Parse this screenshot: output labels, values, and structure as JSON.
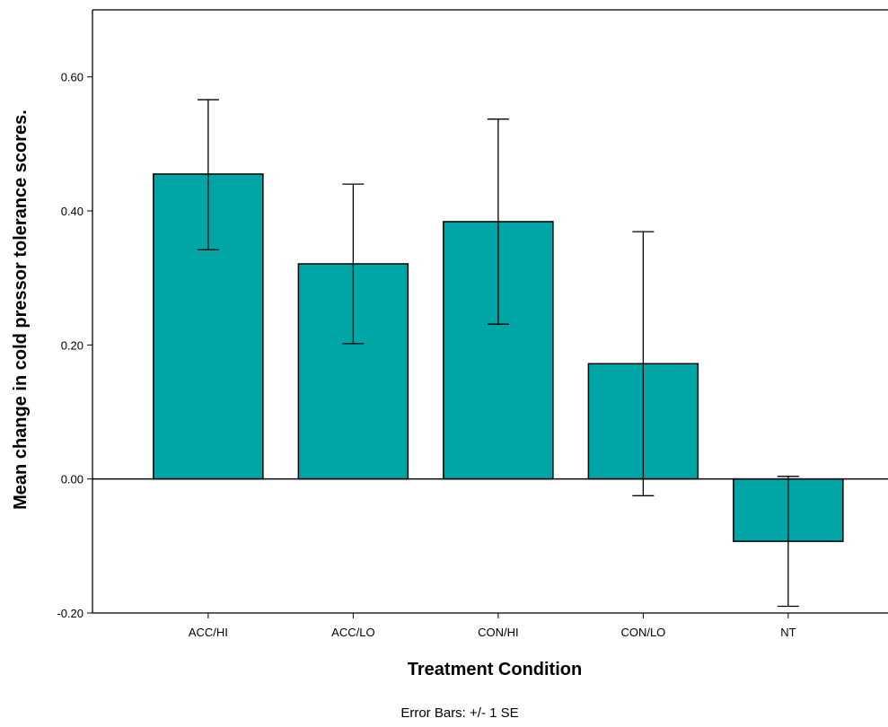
{
  "chart_data": {
    "type": "bar",
    "categories": [
      "ACC/HI",
      "ACC/LO",
      "CON/HI",
      "CON/LO",
      "NT"
    ],
    "series": [
      {
        "values": [
          0.455,
          0.321,
          0.384,
          0.172,
          -0.093
        ],
        "error_low": [
          0.342,
          0.202,
          0.231,
          -0.025,
          -0.19
        ],
        "error_high": [
          0.566,
          0.44,
          0.537,
          0.369,
          0.004
        ]
      }
    ],
    "xlabel": "Treatment Condition",
    "ylabel": "Mean change in cold pressor tolerance scores.",
    "ylim": [
      -0.2,
      0.7
    ],
    "yticks": [
      -0.2,
      0.0,
      0.2,
      0.4,
      0.6
    ],
    "ytick_labels": [
      "-0.20",
      "0.00",
      "0.20",
      "0.40",
      "0.60"
    ],
    "grid": false,
    "bar_color": "#00A5A5",
    "footnote": "Error Bars: +/- 1 SE"
  }
}
